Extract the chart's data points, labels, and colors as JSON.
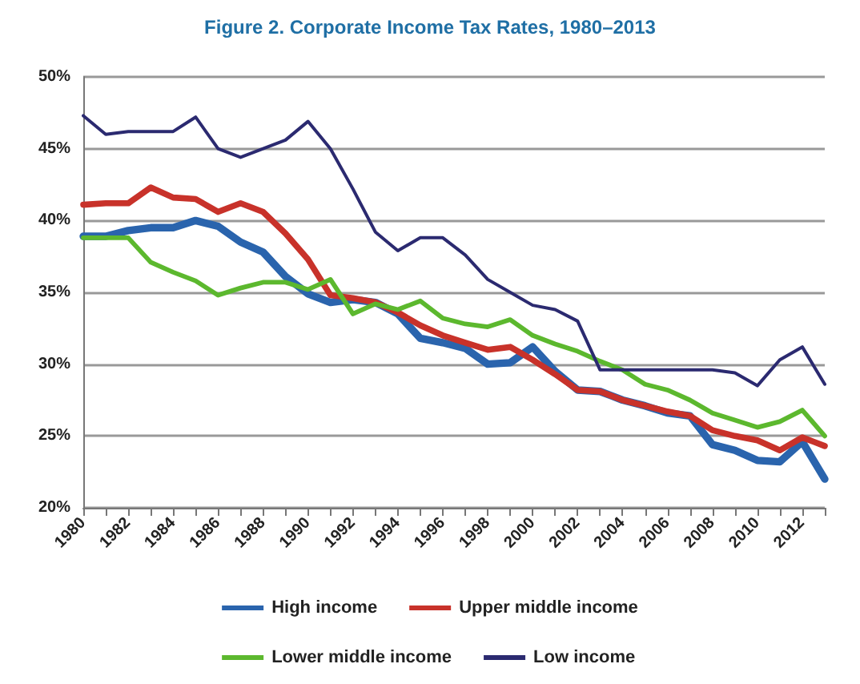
{
  "chart_data": {
    "type": "line",
    "title": "Figure 2. Corporate Income Tax Rates, 1980–2013",
    "categories": [
      "1980",
      null,
      "1982",
      null,
      "1984",
      null,
      "1986",
      null,
      "1988",
      null,
      "1990",
      null,
      "1992",
      null,
      "1994",
      null,
      "1996",
      null,
      "1998",
      null,
      "2000",
      null,
      "2002",
      null,
      "2004",
      null,
      "2006",
      null,
      "2008",
      null,
      "2010",
      null,
      "2012",
      null
    ],
    "series": [
      {
        "name": "High income",
        "color": "#2a64ad",
        "values": [
          38.9,
          38.9,
          39.3,
          39.5,
          39.5,
          40.0,
          39.6,
          38.5,
          37.8,
          36.1,
          34.9,
          34.3,
          34.5,
          34.3,
          33.5,
          31.8,
          31.5,
          31.1,
          30.0,
          30.1,
          31.2,
          29.5,
          28.2,
          28.1,
          27.5,
          27.1,
          26.6,
          26.4,
          24.4,
          24.0,
          23.3,
          23.2,
          24.6,
          22.0
        ]
      },
      {
        "name": "Upper middle income",
        "color": "#c8322a",
        "values": [
          41.1,
          41.2,
          41.2,
          42.3,
          41.6,
          41.5,
          40.6,
          41.2,
          40.6,
          39.1,
          37.3,
          34.8,
          34.6,
          34.3,
          33.6,
          32.7,
          32.0,
          31.5,
          31.0,
          31.2,
          30.3,
          29.3,
          28.2,
          28.1,
          27.5,
          27.1,
          26.7,
          26.4,
          25.4,
          25.0,
          24.7,
          24.0,
          24.9,
          24.3
        ]
      },
      {
        "name": "Lower middle income",
        "color": "#5cb82e",
        "values": [
          38.8,
          38.8,
          38.8,
          37.1,
          36.4,
          35.8,
          34.8,
          35.3,
          35.7,
          35.7,
          35.2,
          35.9,
          33.5,
          34.2,
          33.8,
          34.4,
          33.2,
          32.8,
          32.6,
          33.1,
          32.0,
          31.4,
          30.9,
          30.2,
          29.6,
          28.6,
          28.2,
          27.5,
          26.6,
          26.1,
          25.6,
          26.0,
          26.8,
          25.0
        ]
      },
      {
        "name": "Low income",
        "color": "#2b2a70",
        "values": [
          47.3,
          46.0,
          46.2,
          46.2,
          46.2,
          47.2,
          45.0,
          44.4,
          45.0,
          45.6,
          46.9,
          45.0,
          42.2,
          39.2,
          37.9,
          38.8,
          38.8,
          37.6,
          35.9,
          35.0,
          34.1,
          33.8,
          33.0,
          29.6,
          29.6,
          29.6,
          29.6,
          29.6,
          29.6,
          29.4,
          28.5,
          30.3,
          31.2,
          28.6
        ]
      }
    ],
    "ylim": [
      20,
      50
    ],
    "yticks": [
      {
        "value": 20,
        "label": "20%"
      },
      {
        "value": 25,
        "label": "25%"
      },
      {
        "value": 30,
        "label": "30%"
      },
      {
        "value": 35,
        "label": "35%"
      },
      {
        "value": 40,
        "label": "40%"
      },
      {
        "value": 45,
        "label": "45%"
      },
      {
        "value": 50,
        "label": "50%"
      }
    ],
    "grid": "y",
    "legend": "bottom",
    "marker": "none",
    "line_style": "solid"
  }
}
